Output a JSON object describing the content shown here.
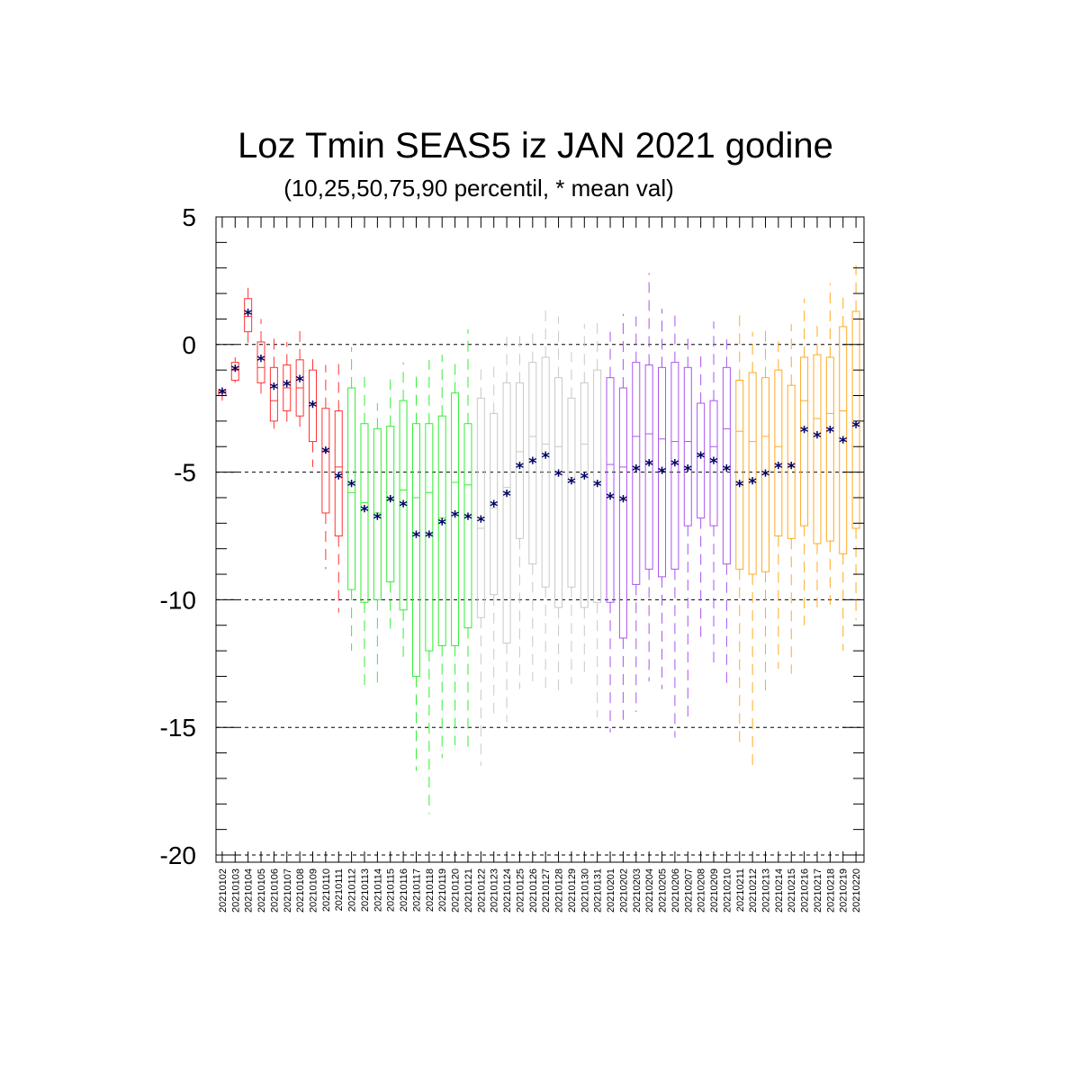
{
  "chart_data": {
    "type": "box",
    "title": "Loz Tmin SEAS5 iz JAN 2021 godine",
    "subtitle": "(10,25,50,75,90 percentil, * mean val)",
    "ylim": [
      -20,
      5
    ],
    "yticks": [
      5,
      0,
      -5,
      -10,
      -15,
      -20
    ],
    "grid": "horizontal-dashed",
    "mean_marker": "*",
    "colors": {
      "red": "#ff3333",
      "green": "#33ee33",
      "gray": "#c8c8c8",
      "purple": "#aa55ee",
      "orange": "#ffaa22",
      "mean": "#000066"
    },
    "boxes": [
      {
        "date": "20210102",
        "color": "red",
        "p10": -2.2,
        "p25": -2.0,
        "p50": -1.9,
        "p75": -1.8,
        "p90": -1.7,
        "mean": -1.9
      },
      {
        "date": "20210103",
        "color": "red",
        "p10": -1.5,
        "p25": -1.4,
        "p50": -1.0,
        "p75": -0.7,
        "p90": -0.5,
        "mean": -1.0
      },
      {
        "date": "20210104",
        "color": "red",
        "p10": 0.0,
        "p25": 0.5,
        "p50": 1.1,
        "p75": 1.8,
        "p90": 2.3,
        "mean": 1.2
      },
      {
        "date": "20210105",
        "color": "red",
        "p10": -2.2,
        "p25": -1.5,
        "p50": -0.9,
        "p75": 0.1,
        "p90": 1.0,
        "mean": -0.6
      },
      {
        "date": "20210106",
        "color": "red",
        "p10": -3.3,
        "p25": -3.0,
        "p50": -2.2,
        "p75": -0.9,
        "p90": 0.4,
        "mean": -1.7
      },
      {
        "date": "20210107",
        "color": "red",
        "p10": -3.2,
        "p25": -2.6,
        "p50": -1.7,
        "p75": -0.8,
        "p90": 0.1,
        "mean": -1.6
      },
      {
        "date": "20210108",
        "color": "red",
        "p10": -3.5,
        "p25": -2.8,
        "p50": -1.7,
        "p75": -0.6,
        "p90": 0.8,
        "mean": -1.4
      },
      {
        "date": "20210109",
        "color": "red",
        "p10": -4.8,
        "p25": -3.8,
        "p50": -2.3,
        "p75": -1.0,
        "p90": -0.3,
        "mean": -2.4
      },
      {
        "date": "20210110",
        "color": "red",
        "p10": -8.8,
        "p25": -6.6,
        "p50": -4.2,
        "p75": -2.5,
        "p90": -0.8,
        "mean": -4.2
      },
      {
        "date": "20210111",
        "color": "red",
        "p10": -10.5,
        "p25": -7.5,
        "p50": -4.8,
        "p75": -2.6,
        "p90": -0.7,
        "mean": -5.2
      },
      {
        "date": "20210112",
        "color": "green",
        "p10": -12.0,
        "p25": -9.6,
        "p50": -5.8,
        "p75": -1.7,
        "p90": -0.1,
        "mean": -5.5
      },
      {
        "date": "20210113",
        "color": "green",
        "p10": -13.5,
        "p25": -10.1,
        "p50": -6.2,
        "p75": -3.1,
        "p90": -1.2,
        "mean": -6.5
      },
      {
        "date": "20210114",
        "color": "green",
        "p10": -13.3,
        "p25": -10.0,
        "p50": -6.6,
        "p75": -3.3,
        "p90": -2.3,
        "mean": -6.8
      },
      {
        "date": "20210115",
        "color": "green",
        "p10": -11.2,
        "p25": -9.3,
        "p50": -6.1,
        "p75": -3.2,
        "p90": -1.2,
        "mean": -6.1
      },
      {
        "date": "20210116",
        "color": "green",
        "p10": -12.3,
        "p25": -10.4,
        "p50": -5.7,
        "p75": -2.2,
        "p90": -0.7,
        "mean": -6.3
      },
      {
        "date": "20210117",
        "color": "green",
        "p10": -16.7,
        "p25": -13.0,
        "p50": -6.0,
        "p75": -3.1,
        "p90": -1.2,
        "mean": -7.5
      },
      {
        "date": "20210118",
        "color": "green",
        "p10": -18.4,
        "p25": -12.0,
        "p50": -5.8,
        "p75": -3.1,
        "p90": -0.6,
        "mean": -7.5
      },
      {
        "date": "20210119",
        "color": "green",
        "p10": -16.2,
        "p25": -11.8,
        "p50": -6.8,
        "p75": -2.8,
        "p90": -0.4,
        "mean": -7.0
      },
      {
        "date": "20210120",
        "color": "green",
        "p10": -15.7,
        "p25": -11.8,
        "p50": -5.4,
        "p75": -1.9,
        "p90": -0.7,
        "mean": -6.7
      },
      {
        "date": "20210121",
        "color": "green",
        "p10": -15.8,
        "p25": -11.1,
        "p50": -5.5,
        "p75": -3.1,
        "p90": 0.6,
        "mean": -6.8
      },
      {
        "date": "20210122",
        "color": "gray",
        "p10": -16.5,
        "p25": -10.7,
        "p50": -7.2,
        "p75": -2.1,
        "p90": -0.7,
        "mean": -6.9
      },
      {
        "date": "20210123",
        "color": "gray",
        "p10": -14.7,
        "p25": -9.8,
        "p50": -6.4,
        "p75": -2.7,
        "p90": -0.8,
        "mean": -6.3
      },
      {
        "date": "20210124",
        "color": "gray",
        "p10": -14.8,
        "p25": -11.7,
        "p50": -5.6,
        "p75": -1.5,
        "p90": 0.3,
        "mean": -5.9
      },
      {
        "date": "20210125",
        "color": "gray",
        "p10": -13.5,
        "p25": -7.6,
        "p50": -4.2,
        "p75": -1.5,
        "p90": 0.4,
        "mean": -4.8
      },
      {
        "date": "20210126",
        "color": "gray",
        "p10": -13.2,
        "p25": -8.6,
        "p50": -3.6,
        "p75": -0.7,
        "p90": 0.6,
        "mean": -4.6
      },
      {
        "date": "20210127",
        "color": "gray",
        "p10": -13.6,
        "p25": -9.5,
        "p50": -3.9,
        "p75": -0.5,
        "p90": 1.4,
        "mean": -4.4
      },
      {
        "date": "20210128",
        "color": "gray",
        "p10": -13.6,
        "p25": -10.3,
        "p50": -4.0,
        "p75": -1.3,
        "p90": 1.1,
        "mean": -5.1
      },
      {
        "date": "20210129",
        "color": "gray",
        "p10": -13.3,
        "p25": -9.5,
        "p50": -5.2,
        "p75": -2.1,
        "p90": -0.3,
        "mean": -5.4
      },
      {
        "date": "20210130",
        "color": "gray",
        "p10": -13.1,
        "p25": -10.3,
        "p50": -3.9,
        "p75": -1.5,
        "p90": 0.8,
        "mean": -5.2
      },
      {
        "date": "20210131",
        "color": "gray",
        "p10": -14.6,
        "p25": -10.1,
        "p50": -5.4,
        "p75": -1.0,
        "p90": 0.9,
        "mean": -5.5
      },
      {
        "date": "20210201",
        "color": "purple",
        "p10": -15.2,
        "p25": -10.1,
        "p50": -4.7,
        "p75": -1.3,
        "p90": 0.5,
        "mean": -6.0
      },
      {
        "date": "20210202",
        "color": "purple",
        "p10": -14.7,
        "p25": -11.5,
        "p50": -4.8,
        "p75": -1.7,
        "p90": 1.2,
        "mean": -6.1
      },
      {
        "date": "20210203",
        "color": "purple",
        "p10": -14.4,
        "p25": -9.4,
        "p50": -3.6,
        "p75": -0.7,
        "p90": 1.1,
        "mean": -4.9
      },
      {
        "date": "20210204",
        "color": "purple",
        "p10": -13.2,
        "p25": -8.8,
        "p50": -3.5,
        "p75": -0.8,
        "p90": 2.8,
        "mean": -4.7
      },
      {
        "date": "20210205",
        "color": "purple",
        "p10": -13.5,
        "p25": -9.1,
        "p50": -3.7,
        "p75": -0.9,
        "p90": 1.4,
        "mean": -5.0
      },
      {
        "date": "20210206",
        "color": "purple",
        "p10": -15.4,
        "p25": -8.8,
        "p50": -3.8,
        "p75": -0.7,
        "p90": 1.2,
        "mean": -4.7
      },
      {
        "date": "20210207",
        "color": "purple",
        "p10": -14.7,
        "p25": -7.1,
        "p50": -3.8,
        "p75": -0.9,
        "p90": 0.5,
        "mean": -4.9
      },
      {
        "date": "20210208",
        "color": "purple",
        "p10": -11.6,
        "p25": -6.8,
        "p50": -4.3,
        "p75": -2.3,
        "p90": -0.4,
        "mean": -4.4
      },
      {
        "date": "20210209",
        "color": "purple",
        "p10": -12.7,
        "p25": -7.1,
        "p50": -4.0,
        "p75": -2.2,
        "p90": 0.9,
        "mean": -4.6
      },
      {
        "date": "20210210",
        "color": "purple",
        "p10": -13.3,
        "p25": -8.6,
        "p50": -3.3,
        "p75": -0.9,
        "p90": 0.2,
        "mean": -4.9
      },
      {
        "date": "20210211",
        "color": "orange",
        "p10": -15.7,
        "p25": -8.8,
        "p50": -3.4,
        "p75": -1.4,
        "p90": 1.3,
        "mean": -5.5
      },
      {
        "date": "20210212",
        "color": "orange",
        "p10": -16.5,
        "p25": -9.0,
        "p50": -3.8,
        "p75": -1.1,
        "p90": 0.5,
        "mean": -5.4
      },
      {
        "date": "20210213",
        "color": "orange",
        "p10": -13.8,
        "p25": -8.9,
        "p50": -3.6,
        "p75": -1.3,
        "p90": 0.8,
        "mean": -5.1
      },
      {
        "date": "20210214",
        "color": "orange",
        "p10": -12.7,
        "p25": -7.5,
        "p50": -4.0,
        "p75": -1.0,
        "p90": 0.4,
        "mean": -4.8
      },
      {
        "date": "20210215",
        "color": "orange",
        "p10": -12.9,
        "p25": -7.6,
        "p50": -4.8,
        "p75": -1.6,
        "p90": 0.8,
        "mean": -4.8
      },
      {
        "date": "20210216",
        "color": "orange",
        "p10": -11.0,
        "p25": -7.1,
        "p50": -2.2,
        "p75": -0.5,
        "p90": 1.8,
        "mean": -3.4
      },
      {
        "date": "20210217",
        "color": "orange",
        "p10": -10.3,
        "p25": -7.8,
        "p50": -2.9,
        "p75": -0.4,
        "p90": 1.0,
        "mean": -3.6
      },
      {
        "date": "20210218",
        "color": "orange",
        "p10": -10.2,
        "p25": -7.7,
        "p50": -2.7,
        "p75": -0.5,
        "p90": 2.4,
        "mean": -3.4
      },
      {
        "date": "20210219",
        "color": "orange",
        "p10": -12.0,
        "p25": -8.2,
        "p50": -2.6,
        "p75": 0.7,
        "p90": 2.0,
        "mean": -3.8
      },
      {
        "date": "20210220",
        "color": "orange",
        "p10": -10.8,
        "p25": -7.2,
        "p50": -2.0,
        "p75": 1.3,
        "p90": 3.1,
        "mean": -3.2
      }
    ]
  }
}
